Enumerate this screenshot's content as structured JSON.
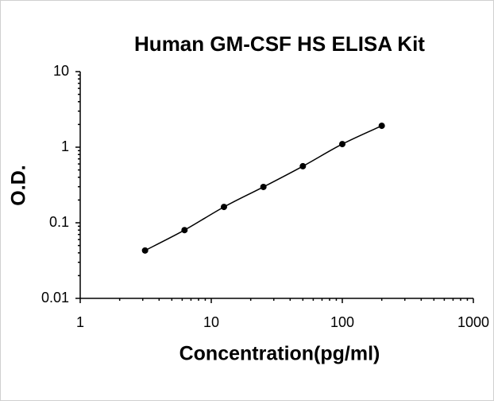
{
  "chart_data": {
    "type": "scatter",
    "title": "Human GM-CSF HS ELISA Kit",
    "x_label": "Concentration(pg/ml)",
    "y_label": "O.D.",
    "x": [
      3.125,
      6.25,
      12.5,
      25,
      50,
      100,
      200
    ],
    "series": [
      {
        "color": "#000000",
        "values": [
          0.043,
          0.08,
          0.162,
          0.298,
          0.56,
          1.1,
          1.92
        ]
      }
    ],
    "xlim": [
      1,
      1000
    ],
    "ylim": [
      0.01,
      10
    ],
    "xticks": [
      1,
      10,
      100,
      1000
    ],
    "yticks": [
      0.01,
      0.1,
      1,
      10
    ],
    "xscale": "log",
    "yscale": "log",
    "fit_curve": true,
    "minor_ticks": true
  }
}
